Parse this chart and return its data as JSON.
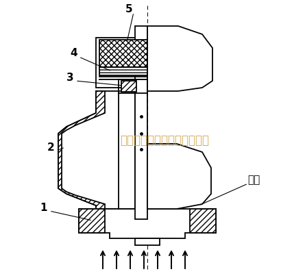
{
  "bg_color": "#ffffff",
  "line_color": "#000000",
  "watermark_color": "#D4A04A",
  "watermark_text": "东莞市马赫机械设备有限公司",
  "label_5": "5",
  "label_4": "4",
  "label_3": "3",
  "label_2": "2",
  "label_1": "1",
  "label_valve": "阀芯",
  "lw": 1.3
}
